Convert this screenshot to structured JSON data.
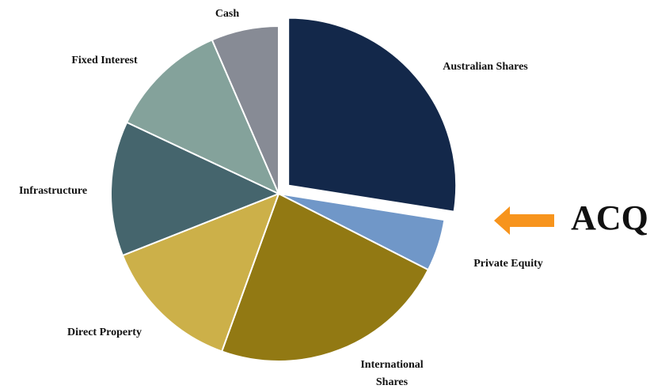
{
  "chart_data": {
    "type": "pie",
    "categories": [
      "Australian Shares",
      "Private Equity",
      "International Shares",
      "Direct Property",
      "Infrastructure",
      "Fixed Interest",
      "Cash"
    ],
    "values": [
      27.5,
      5,
      23,
      13.5,
      13,
      11.5,
      6.5
    ],
    "colors": [
      "#13284a",
      "#7097c8",
      "#927913",
      "#ccb049",
      "#45656d",
      "#84a29b",
      "#878b95"
    ],
    "exploded": [
      "Australian Shares"
    ],
    "annotation": "ACQ"
  }
}
